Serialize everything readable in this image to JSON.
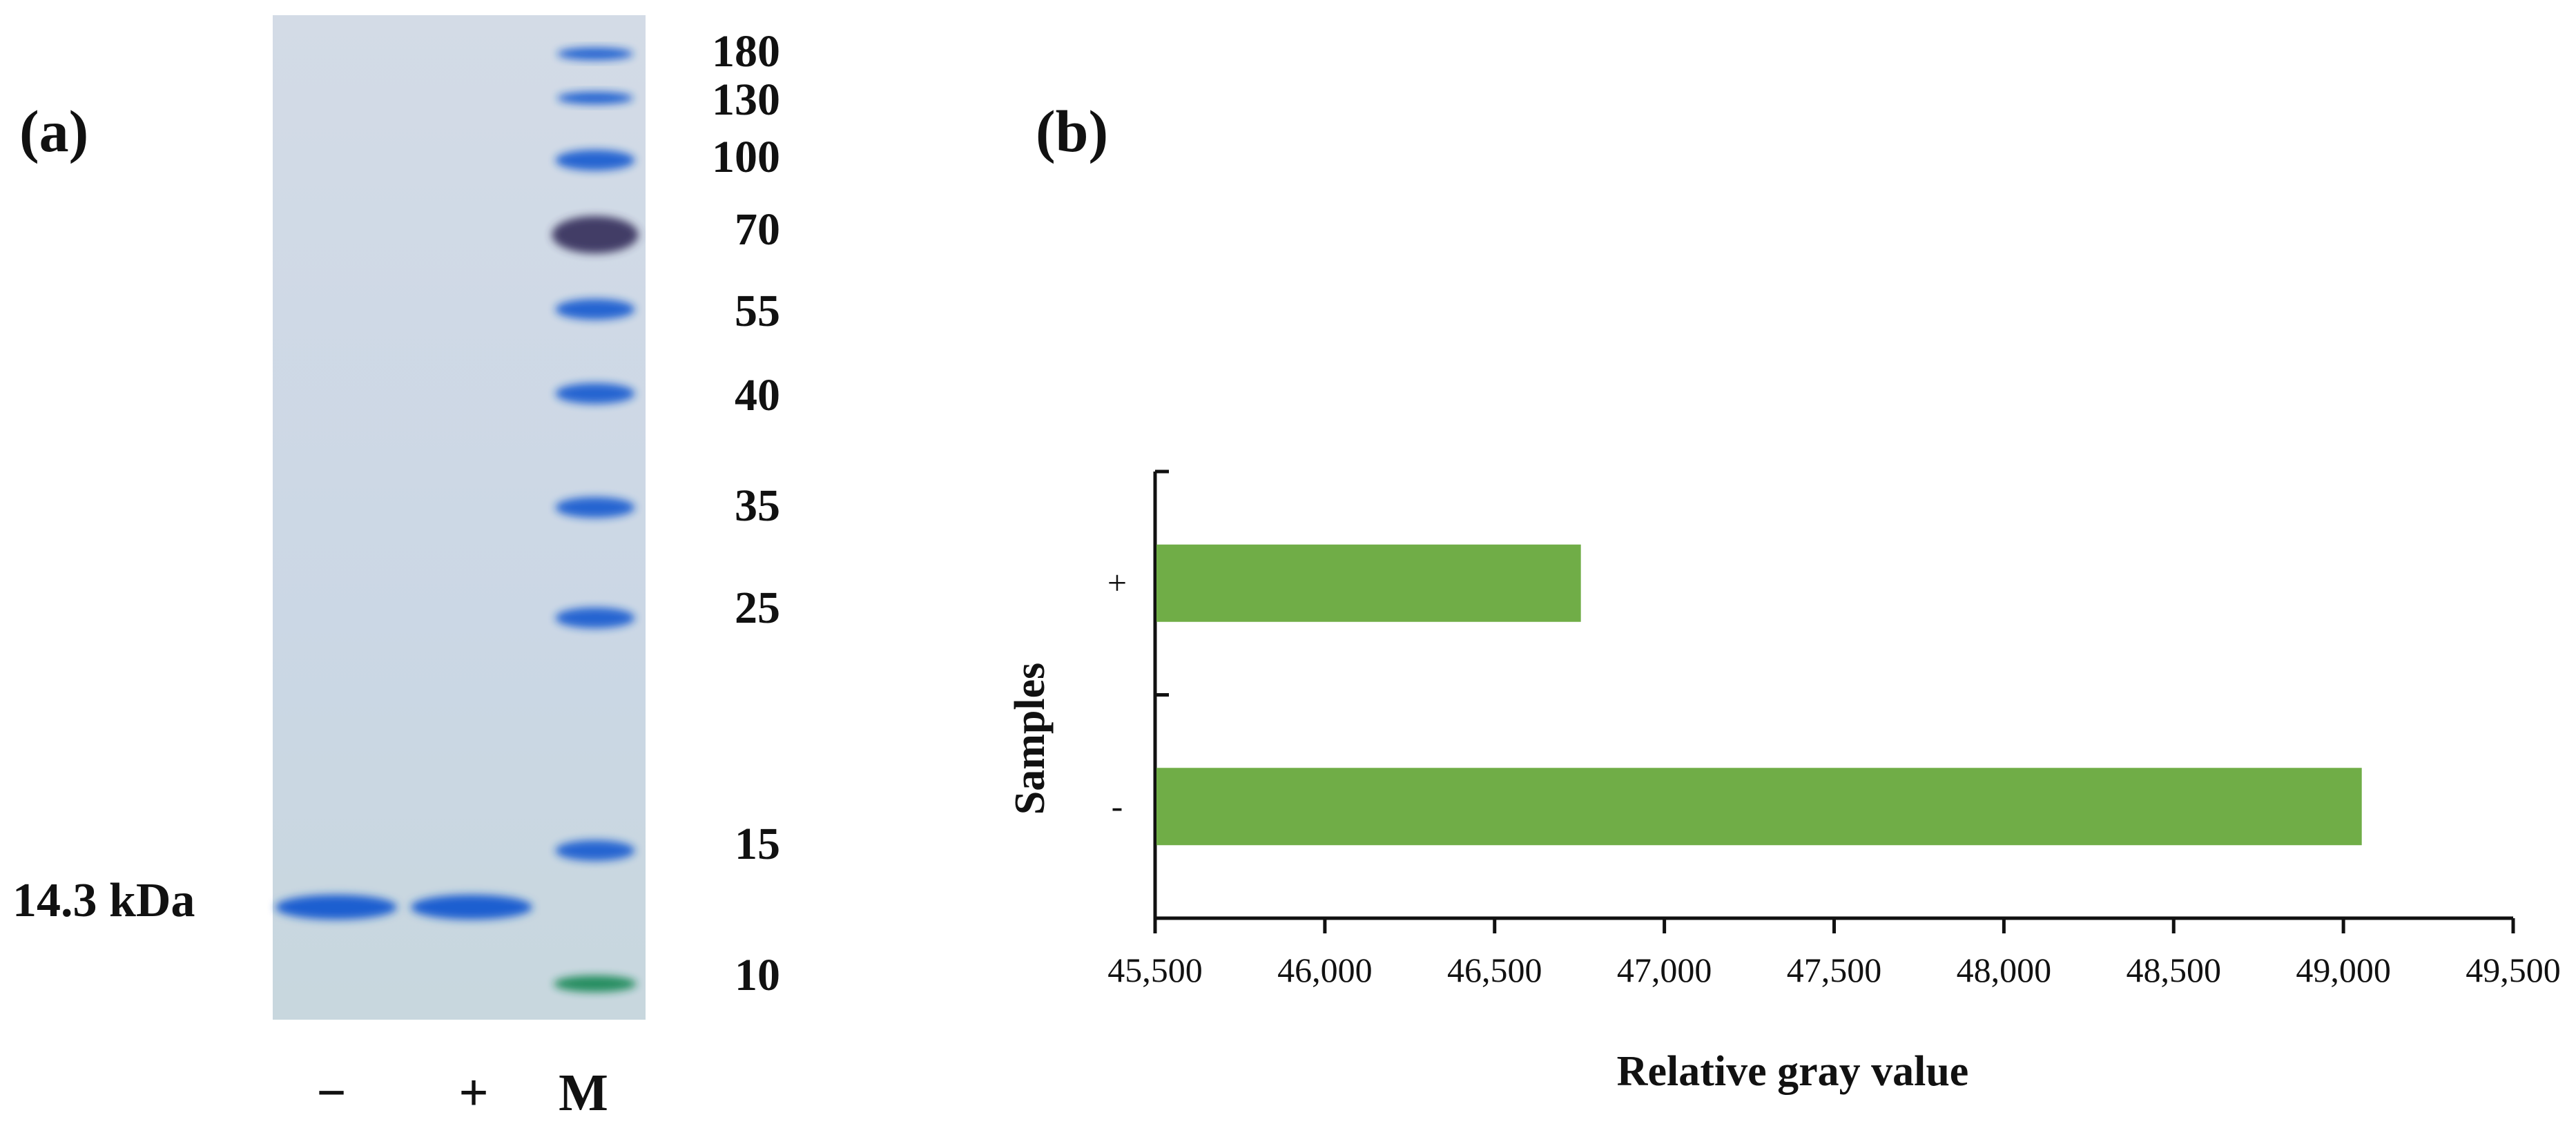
{
  "panels": {
    "a_label": "(a)",
    "b_label": "(b)"
  },
  "gel": {
    "marker_sizes": [
      "180",
      "130",
      "100",
      "70",
      "55",
      "40",
      "35",
      "25",
      "15",
      "10"
    ],
    "band_annotation": "14.3 kDa",
    "lanes": [
      "−",
      "+",
      "M"
    ],
    "colors": {
      "background": "#cdd8e6",
      "band": "#1a5fd0",
      "dark_band": "#3a3560",
      "green_band": "#1d8a5a"
    }
  },
  "chart_data": {
    "type": "bar",
    "orientation": "horizontal",
    "categories": [
      "-",
      "+"
    ],
    "values": [
      49050,
      46750
    ],
    "xlabel": "Relative gray value",
    "ylabel": "Samples",
    "xlim": [
      45500,
      49500
    ],
    "xticks": [
      "45,500",
      "46,000",
      "46,500",
      "47,000",
      "47,500",
      "48,000",
      "48,500",
      "49,000",
      "49,500"
    ],
    "bar_color": "#70ad47",
    "grid": false
  }
}
